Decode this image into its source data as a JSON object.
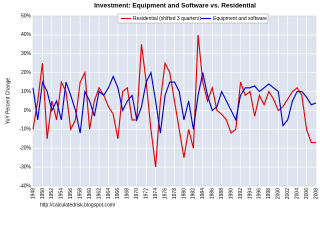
{
  "chart_data": {
    "type": "line",
    "title": "Investment: Equipment and Software vs. Residential",
    "y_label": "YoY Percent Change",
    "annotation": "http://calculatedrisk.blogspot.com/",
    "x": [
      1948,
      1949,
      1950,
      1951,
      1952,
      1953,
      1954,
      1955,
      1956,
      1957,
      1958,
      1959,
      1960,
      1961,
      1962,
      1963,
      1964,
      1965,
      1966,
      1967,
      1968,
      1969,
      1970,
      1971,
      1972,
      1973,
      1974,
      1975,
      1976,
      1977,
      1978,
      1979,
      1980,
      1981,
      1982,
      1983,
      1984,
      1985,
      1986,
      1987,
      1988,
      1989,
      1990,
      1991,
      1992,
      1993,
      1994,
      1995,
      1996,
      1997,
      1998,
      1999,
      2000,
      2001,
      2002,
      2003,
      2004,
      2005,
      2006,
      2007,
      2008
    ],
    "series": [
      {
        "name": "Residential (shifted 3 quarters)",
        "color": "#e00000",
        "values": [
          -10,
          5,
          25,
          -15,
          5,
          -5,
          15,
          10,
          -10,
          -5,
          15,
          20,
          -10,
          5,
          12,
          8,
          2,
          -2,
          -15,
          10,
          12,
          -5,
          -5,
          35,
          15,
          -10,
          -30,
          5,
          25,
          20,
          5,
          -10,
          -25,
          -10,
          -20,
          40,
          15,
          5,
          12,
          0,
          -2,
          -5,
          -12,
          -10,
          15,
          8,
          10,
          -3,
          8,
          3,
          10,
          6,
          0,
          2,
          6,
          10,
          12,
          8,
          -10,
          -17,
          -17
        ]
      },
      {
        "name": "Equipment and software",
        "color": "#0000cc",
        "values": [
          12,
          -5,
          15,
          10,
          0,
          5,
          -5,
          15,
          8,
          0,
          -12,
          10,
          5,
          -3,
          10,
          8,
          12,
          18,
          12,
          0,
          5,
          8,
          -5,
          2,
          15,
          20,
          5,
          -12,
          8,
          15,
          15,
          10,
          -5,
          5,
          -10,
          8,
          20,
          8,
          0,
          2,
          10,
          5,
          0,
          -5,
          8,
          12,
          12,
          13,
          10,
          12,
          14,
          12,
          10,
          -8,
          -5,
          5,
          10,
          10,
          7,
          3,
          4
        ]
      }
    ],
    "xlim": [
      1948,
      2008
    ],
    "xticks": [
      1948,
      1950,
      1952,
      1954,
      1956,
      1958,
      1960,
      1962,
      1964,
      1966,
      1968,
      1970,
      1972,
      1974,
      1976,
      1978,
      1980,
      1982,
      1984,
      1986,
      1988,
      1990,
      1992,
      1994,
      1996,
      1998,
      2000,
      2002,
      2004,
      2006,
      2008
    ],
    "ylim": [
      -40,
      50
    ],
    "yticks": [
      {
        "value": -40,
        "label": "-40%"
      },
      {
        "value": -30,
        "label": "-30%"
      },
      {
        "value": -20,
        "label": "-20%"
      },
      {
        "value": -10,
        "label": "-10%"
      },
      {
        "value": 0,
        "label": "0%"
      },
      {
        "value": 10,
        "label": "10%"
      },
      {
        "value": 20,
        "label": "20%"
      },
      {
        "value": 30,
        "label": "30%"
      },
      {
        "value": 40,
        "label": "40%"
      },
      {
        "value": 50,
        "label": "50%"
      }
    ],
    "grid": true,
    "legend": "top"
  }
}
